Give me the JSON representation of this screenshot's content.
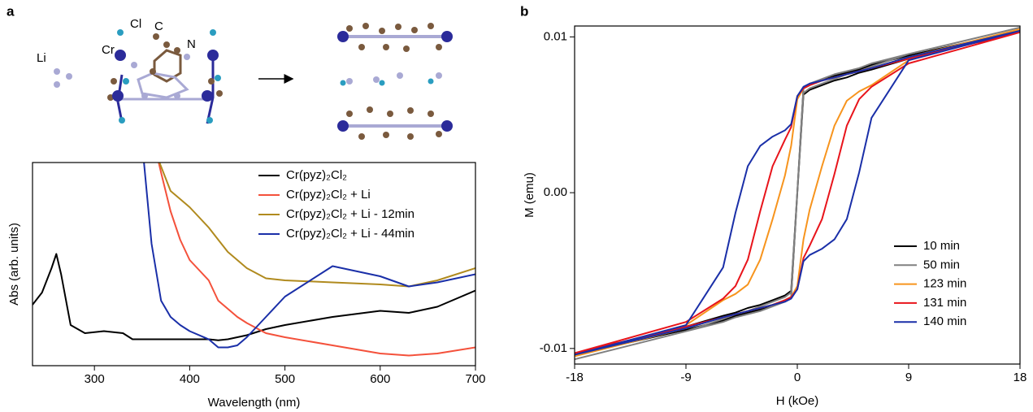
{
  "figure": {
    "panel_labels": [
      "a",
      "b"
    ],
    "structure_labels": [
      "Li",
      "Cl",
      "C",
      "Cr",
      "N"
    ]
  },
  "chart_data": [
    {
      "type": "line",
      "y_label": "Abs (arb. units)",
      "x_label": "Wavelength (nm)",
      "xlim": [
        235,
        700
      ],
      "xticks": [
        300,
        400,
        500,
        600,
        700
      ],
      "ylim": [
        0,
        1
      ],
      "legend": "upper-right",
      "x": [
        235,
        245,
        255,
        260,
        265,
        275,
        290,
        310,
        330,
        340,
        350,
        360,
        370,
        380,
        390,
        400,
        420,
        430,
        440,
        450,
        460,
        480,
        500,
        550,
        600,
        630,
        660,
        700
      ],
      "series": [
        {
          "name": "Cr(pyz)₂Cl₂",
          "color": "#000000",
          "values": [
            0.3,
            0.36,
            0.48,
            0.55,
            0.45,
            0.2,
            0.16,
            0.17,
            0.16,
            0.13,
            0.13,
            0.13,
            0.13,
            0.13,
            0.13,
            0.13,
            0.13,
            0.125,
            0.13,
            0.14,
            0.15,
            0.18,
            0.2,
            0.24,
            0.27,
            0.26,
            0.29,
            0.37
          ]
        },
        {
          "name": "Cr(pyz)₂Cl₂ + Li",
          "color": "#f4513b",
          "values": [
            null,
            null,
            null,
            null,
            null,
            null,
            null,
            null,
            null,
            null,
            null,
            1.15,
            0.95,
            0.76,
            0.62,
            0.52,
            0.42,
            0.32,
            0.28,
            0.24,
            0.21,
            0.16,
            0.14,
            0.1,
            0.06,
            0.05,
            0.06,
            0.09
          ]
        },
        {
          "name": "Cr(pyz)₂Cl₂ + Li - 12min",
          "color": "#b08a1e",
          "values": [
            null,
            null,
            null,
            null,
            null,
            null,
            null,
            null,
            null,
            null,
            null,
            1.1,
            0.98,
            0.86,
            0.82,
            0.78,
            0.68,
            0.62,
            0.56,
            0.52,
            0.48,
            0.43,
            0.42,
            0.41,
            0.4,
            0.39,
            0.42,
            0.48
          ]
        },
        {
          "name": "Cr(pyz)₂Cl₂ + Li - 44min",
          "color": "#1a2fa8",
          "values": [
            null,
            null,
            null,
            null,
            null,
            null,
            null,
            null,
            null,
            null,
            1.1,
            0.6,
            0.32,
            0.24,
            0.2,
            0.17,
            0.13,
            0.09,
            0.09,
            0.1,
            0.14,
            0.24,
            0.34,
            0.49,
            0.44,
            0.39,
            0.41,
            0.45
          ]
        }
      ]
    },
    {
      "type": "line",
      "y_label": "M (emu)",
      "x_label": "H (kOe)",
      "xlim": [
        -18,
        18
      ],
      "xticks": [
        -18,
        -9,
        0,
        9,
        18
      ],
      "ylim": [
        -0.011,
        0.0107
      ],
      "yticks": [
        -0.01,
        {
          "value": 0,
          "label": "0.00"
        },
        0.01
      ],
      "legend": "lower-right",
      "x": [
        18,
        9,
        6,
        5,
        4,
        3,
        2,
        1,
        0.5,
        0,
        -0.5,
        -1,
        -2,
        -3,
        -4,
        -5,
        -6,
        -9,
        -18,
        -9,
        -6,
        -5,
        -4,
        -3,
        -2,
        -1,
        -0.5,
        0,
        0.5,
        1,
        2,
        3,
        4,
        5,
        6,
        9,
        18
      ],
      "series": [
        {
          "name": "10 min",
          "color": "#000000",
          "values": [
            0.0104,
            0.0088,
            0.0082,
            0.0079,
            0.0077,
            0.0075,
            0.0072,
            0.0069,
            0.0067,
            0,
            -0.0063,
            -0.0066,
            -0.0069,
            -0.0072,
            -0.0074,
            -0.0077,
            -0.0079,
            -0.0086,
            -0.0104,
            -0.0088,
            -0.0082,
            -0.0079,
            -0.0077,
            -0.0075,
            -0.0072,
            -0.0069,
            -0.0067,
            0,
            0.0063,
            0.0066,
            0.0069,
            0.0072,
            0.0074,
            0.0077,
            0.0079,
            0.0086,
            0.0104
          ]
        },
        {
          "name": "50 min",
          "color": "#808080",
          "values": [
            0.0106,
            0.0089,
            0.0083,
            0.008,
            0.0078,
            0.0076,
            0.0073,
            0.007,
            0.0067,
            0,
            -0.0064,
            -0.0067,
            -0.007,
            -0.0073,
            -0.0076,
            -0.0078,
            -0.0081,
            -0.0089,
            -0.0107,
            -0.0089,
            -0.0083,
            -0.008,
            -0.0078,
            -0.0076,
            -0.0073,
            -0.007,
            -0.0067,
            0,
            0.0064,
            0.0067,
            0.007,
            0.0073,
            0.0076,
            0.0078,
            0.0081,
            0.0089,
            0.0106
          ]
        },
        {
          "name": "123 min",
          "color": "#f7941d",
          "values": [
            0.0105,
            0.0087,
            0.008,
            0.0078,
            0.0076,
            0.0074,
            0.0072,
            0.0069,
            0.0067,
            0.006,
            0.003,
            0.0011,
            -0.0017,
            -0.0043,
            -0.0059,
            -0.0065,
            -0.0069,
            -0.0085,
            -0.0105,
            -0.0087,
            -0.008,
            -0.0078,
            -0.0076,
            -0.0074,
            -0.0072,
            -0.0069,
            -0.0067,
            -0.006,
            -0.003,
            -0.0011,
            0.0017,
            0.0043,
            0.0059,
            0.0065,
            0.0069,
            0.0085,
            0.0105
          ]
        },
        {
          "name": "131 min",
          "color": "#e8141b",
          "values": [
            0.0103,
            0.0086,
            0.008,
            0.0078,
            0.0076,
            0.0074,
            0.0072,
            0.0069,
            0.0067,
            0.0062,
            0.0042,
            0.0034,
            0.0017,
            -0.0012,
            -0.0043,
            -0.006,
            -0.0068,
            -0.0083,
            -0.0103,
            -0.0086,
            -0.008,
            -0.0078,
            -0.0076,
            -0.0074,
            -0.0072,
            -0.0069,
            -0.0067,
            -0.0062,
            -0.0042,
            -0.0034,
            -0.0017,
            0.0012,
            0.0043,
            0.006,
            0.0068,
            0.0083,
            0.0103
          ]
        },
        {
          "name": "140 min",
          "color": "#1a2fa8",
          "values": [
            0.0104,
            0.0087,
            0.008,
            0.0078,
            0.0076,
            0.0074,
            0.0072,
            0.007,
            0.0068,
            0.0062,
            0.0044,
            0.004,
            0.0036,
            0.003,
            0.0017,
            -0.0013,
            -0.0048,
            -0.0085,
            -0.0104,
            -0.0087,
            -0.008,
            -0.0078,
            -0.0076,
            -0.0074,
            -0.0072,
            -0.007,
            -0.0068,
            -0.0062,
            -0.0044,
            -0.004,
            -0.0036,
            -0.003,
            -0.0017,
            0.0013,
            0.0048,
            0.0085,
            0.0104
          ]
        }
      ]
    }
  ]
}
